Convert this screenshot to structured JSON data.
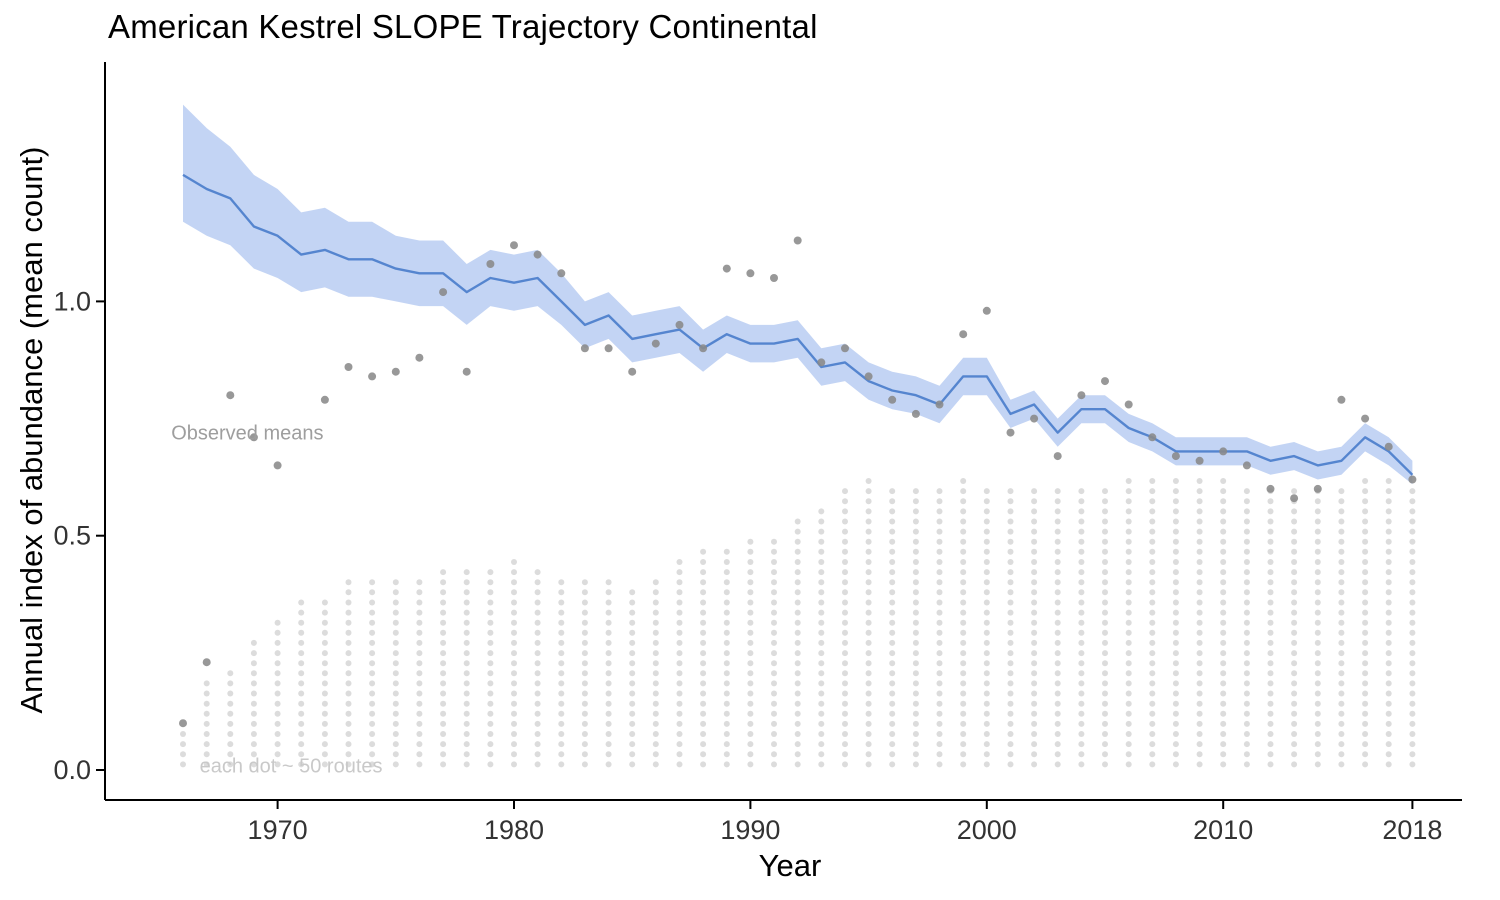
{
  "page": {
    "background": "#ffffff"
  },
  "chart_data": {
    "type": "line",
    "title": "American Kestrel SLOPE Trajectory Continental",
    "xlabel": "Year",
    "ylabel": "Annual index of abundance (mean count)",
    "xlim": [
      1962.7,
      2020.1
    ],
    "ylim": [
      -0.064,
      1.511
    ],
    "x_ticks": [
      1970,
      1980,
      1990,
      2000,
      2010,
      2018
    ],
    "y_ticks": [
      "0.0",
      "0.5",
      "1.0"
    ],
    "grid": false,
    "legend_position": "none",
    "colors": {
      "line": "#5585cf",
      "ribbon": "#b9cdf2",
      "observed_dot": "#8a8a8a",
      "route_dot": "#dcdcdc",
      "axis": "#000000",
      "tick_label": "#333333"
    },
    "x": [
      1966,
      1967,
      1968,
      1969,
      1970,
      1971,
      1972,
      1973,
      1974,
      1975,
      1976,
      1977,
      1978,
      1979,
      1980,
      1981,
      1982,
      1983,
      1984,
      1985,
      1986,
      1987,
      1988,
      1989,
      1990,
      1991,
      1992,
      1993,
      1994,
      1995,
      1996,
      1997,
      1998,
      1999,
      2000,
      2001,
      2002,
      2003,
      2004,
      2005,
      2006,
      2007,
      2008,
      2009,
      2010,
      2011,
      2012,
      2013,
      2014,
      2015,
      2016,
      2017,
      2018
    ],
    "series": [
      {
        "key": "index",
        "name": "Modeled annual index (SLOPE)",
        "values": [
          1.27,
          1.24,
          1.22,
          1.16,
          1.14,
          1.1,
          1.11,
          1.09,
          1.09,
          1.07,
          1.06,
          1.06,
          1.02,
          1.05,
          1.04,
          1.05,
          1.0,
          0.95,
          0.97,
          0.92,
          0.93,
          0.94,
          0.9,
          0.93,
          0.91,
          0.91,
          0.92,
          0.86,
          0.87,
          0.83,
          0.81,
          0.8,
          0.78,
          0.84,
          0.84,
          0.76,
          0.78,
          0.72,
          0.77,
          0.77,
          0.73,
          0.71,
          0.68,
          0.68,
          0.68,
          0.68,
          0.66,
          0.67,
          0.65,
          0.66,
          0.71,
          0.68,
          0.63
        ]
      },
      {
        "key": "lower",
        "name": "CI lower",
        "values": [
          1.17,
          1.14,
          1.12,
          1.07,
          1.05,
          1.02,
          1.03,
          1.01,
          1.01,
          1.0,
          0.99,
          0.99,
          0.95,
          0.99,
          0.98,
          0.99,
          0.95,
          0.9,
          0.92,
          0.87,
          0.88,
          0.89,
          0.85,
          0.89,
          0.87,
          0.87,
          0.88,
          0.82,
          0.83,
          0.79,
          0.77,
          0.76,
          0.74,
          0.8,
          0.8,
          0.73,
          0.75,
          0.69,
          0.74,
          0.74,
          0.7,
          0.68,
          0.65,
          0.65,
          0.65,
          0.65,
          0.63,
          0.64,
          0.62,
          0.63,
          0.68,
          0.65,
          0.61
        ]
      },
      {
        "key": "upper",
        "name": "CI upper",
        "values": [
          1.42,
          1.37,
          1.33,
          1.27,
          1.24,
          1.19,
          1.2,
          1.17,
          1.17,
          1.14,
          1.13,
          1.13,
          1.08,
          1.11,
          1.1,
          1.11,
          1.06,
          1.0,
          1.02,
          0.97,
          0.98,
          0.99,
          0.94,
          0.97,
          0.95,
          0.95,
          0.96,
          0.9,
          0.91,
          0.87,
          0.85,
          0.84,
          0.82,
          0.88,
          0.88,
          0.79,
          0.81,
          0.75,
          0.8,
          0.8,
          0.76,
          0.74,
          0.71,
          0.71,
          0.71,
          0.71,
          0.69,
          0.7,
          0.68,
          0.69,
          0.74,
          0.71,
          0.66
        ]
      },
      {
        "key": "observed",
        "name": "Observed means",
        "values": [
          0.1,
          0.23,
          0.8,
          0.71,
          0.65,
          null,
          0.79,
          0.86,
          0.84,
          0.85,
          0.88,
          1.02,
          0.85,
          1.08,
          1.12,
          1.1,
          1.06,
          0.9,
          0.9,
          0.85,
          0.91,
          0.95,
          0.9,
          1.07,
          1.06,
          1.05,
          1.13,
          0.87,
          0.9,
          0.84,
          0.79,
          0.76,
          0.78,
          0.93,
          0.98,
          0.72,
          0.75,
          0.67,
          0.8,
          0.83,
          0.78,
          0.71,
          0.67,
          0.66,
          0.68,
          0.65,
          0.6,
          0.58,
          0.6,
          0.79,
          0.75,
          0.69,
          0.62
        ]
      }
    ],
    "routes": {
      "routes_per_dot": 50,
      "dot_start": 0.012,
      "dot_spacing": 0.0216,
      "dots_per_year": [
        4,
        9,
        10,
        13,
        15,
        17,
        17,
        19,
        19,
        19,
        19,
        20,
        20,
        20,
        21,
        20,
        19,
        19,
        19,
        18,
        19,
        21,
        22,
        22,
        23,
        23,
        25,
        26,
        28,
        29,
        28,
        28,
        28,
        29,
        28,
        28,
        28,
        28,
        28,
        28,
        29,
        29,
        29,
        29,
        29,
        28,
        28,
        28,
        28,
        28,
        29,
        29,
        28
      ]
    },
    "annotations": [
      {
        "key": "observed-means",
        "text": "Observed means",
        "x": 1965.5,
        "y": 0.705,
        "color": "#9e9e9e"
      },
      {
        "key": "routes-scale",
        "text": "each dot ~ 50 routes",
        "x": 1966.7,
        "y": -0.005,
        "color": "#c9c9c9"
      }
    ]
  }
}
